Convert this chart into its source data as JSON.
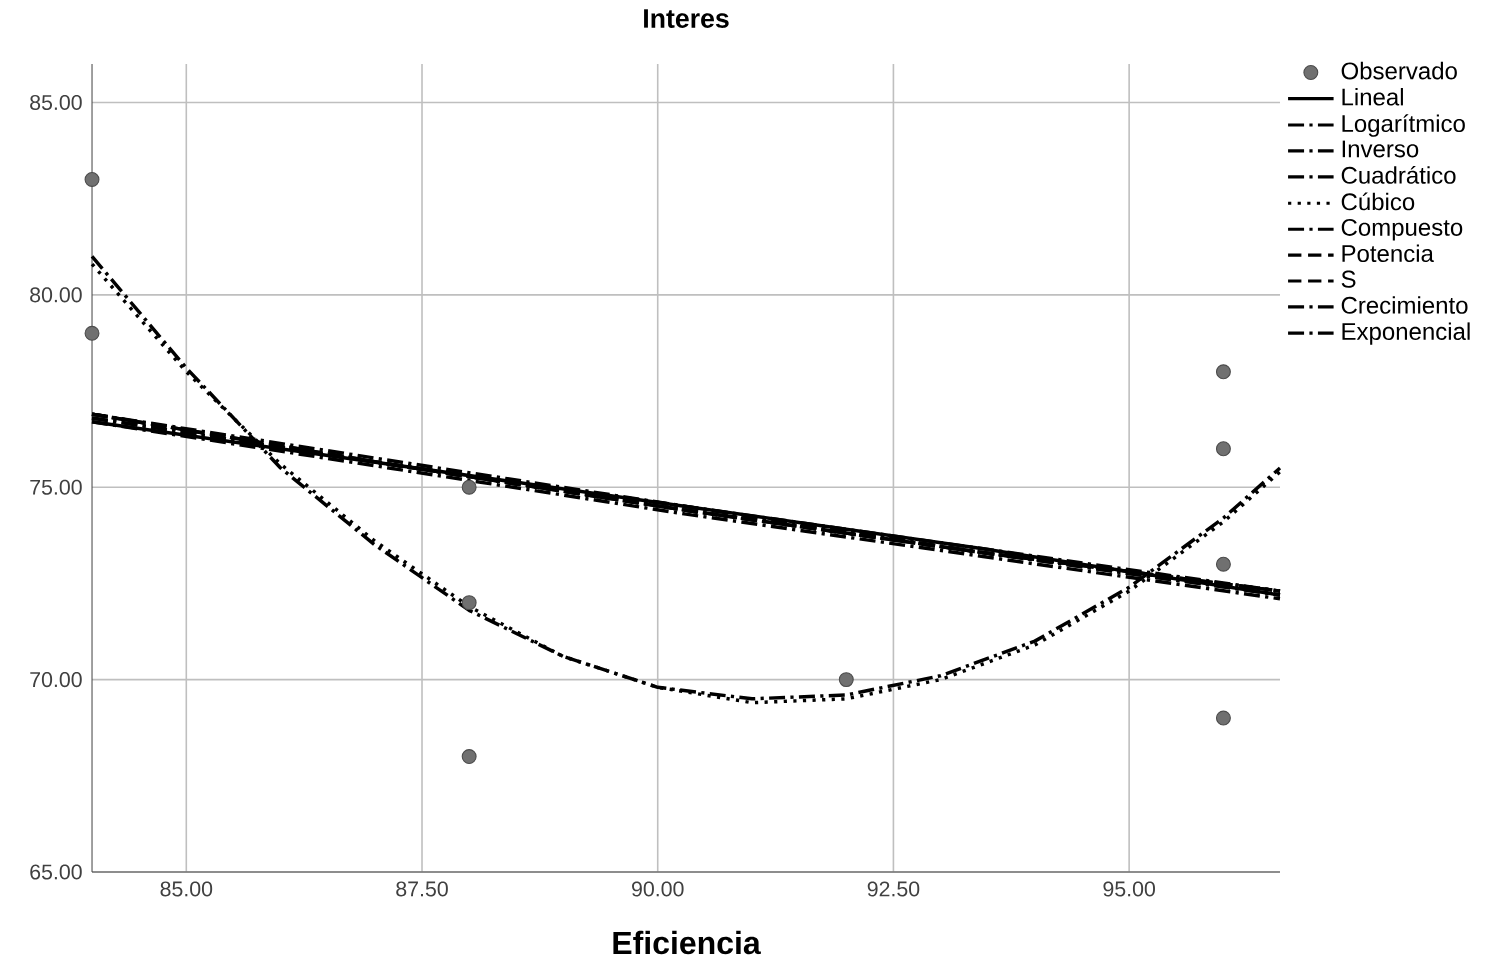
{
  "chart_data": {
    "type": "line",
    "title": "Interes",
    "xlabel": "Eficiencia",
    "xlim": [
      84,
      96.6
    ],
    "ylim": [
      65,
      86
    ],
    "xticks": [
      {
        "value": 85,
        "label": "85.00"
      },
      {
        "value": 87.5,
        "label": "87.50"
      },
      {
        "value": 90,
        "label": "90.00"
      },
      {
        "value": 92.5,
        "label": "92.50"
      },
      {
        "value": 95,
        "label": "95.00"
      }
    ],
    "yticks": [
      {
        "value": 65,
        "label": "65.00"
      },
      {
        "value": 70,
        "label": "70.00"
      },
      {
        "value": 75,
        "label": "75.00"
      },
      {
        "value": 80,
        "label": "80.00"
      },
      {
        "value": 85,
        "label": "85.00"
      }
    ],
    "grid": true,
    "legend": "right",
    "series": [
      {
        "name": "Observado",
        "type": "scatter",
        "marker": "circle",
        "color": "#707070",
        "x": [
          84,
          84,
          88,
          88,
          88,
          92,
          96,
          96,
          96,
          96
        ],
        "values": [
          83,
          79,
          75,
          72,
          68,
          70,
          78,
          76,
          73,
          69
        ]
      },
      {
        "name": "Lineal",
        "color": "#000000",
        "line_style": "solid",
        "x": [
          84,
          87.15,
          90.3,
          93.45,
          96.6
        ],
        "values": [
          76.7,
          75.6,
          74.5,
          73.4,
          72.2
        ]
      },
      {
        "name": "Logarítmico",
        "color": "#000000",
        "line_style": "dashdot",
        "x": [
          84,
          87.15,
          90.3,
          93.45,
          96.6
        ],
        "values": [
          76.8,
          75.6,
          74.5,
          73.3,
          72.2
        ]
      },
      {
        "name": "Inverso",
        "color": "#000000",
        "line_style": "dashdot",
        "x": [
          84,
          87.15,
          90.3,
          93.45,
          96.6
        ],
        "values": [
          76.9,
          75.6,
          74.4,
          73.3,
          72.3
        ]
      },
      {
        "name": "Cuadrático",
        "color": "#000000",
        "line_style": "dashdot",
        "x": [
          84,
          85,
          86,
          87,
          88,
          89,
          90,
          91,
          92,
          93,
          94,
          95,
          96,
          96.6
        ],
        "values": [
          81.0,
          78.1,
          75.5,
          73.5,
          71.8,
          70.6,
          69.8,
          69.5,
          69.6,
          70.1,
          71.0,
          72.4,
          74.2,
          75.5
        ]
      },
      {
        "name": "Cúbico",
        "color": "#000000",
        "line_style": "dotted",
        "x": [
          84,
          85,
          86,
          87,
          88,
          89,
          90,
          91,
          92,
          93,
          94,
          95,
          96,
          96.6
        ],
        "values": [
          80.8,
          78.0,
          75.6,
          73.6,
          71.9,
          70.6,
          69.8,
          69.4,
          69.5,
          70.0,
          70.9,
          72.3,
          74.1,
          75.4
        ]
      },
      {
        "name": "Compuesto",
        "color": "#000000",
        "line_style": "dashdot",
        "x": [
          84,
          87.15,
          90.3,
          93.45,
          96.6
        ],
        "values": [
          76.8,
          75.6,
          74.4,
          73.3,
          72.2
        ]
      },
      {
        "name": "Potencia",
        "color": "#000000",
        "line_style": "dashed",
        "x": [
          84,
          87.15,
          90.3,
          93.45,
          96.6
        ],
        "values": [
          76.9,
          75.6,
          74.4,
          73.3,
          72.3
        ]
      },
      {
        "name": "S",
        "color": "#000000",
        "line_style": "dashed",
        "x": [
          84,
          87.15,
          90.3,
          93.45,
          96.6
        ],
        "values": [
          76.9,
          75.6,
          74.4,
          73.3,
          72.3
        ]
      },
      {
        "name": "Crecimiento",
        "color": "#000000",
        "line_style": "dashdot",
        "x": [
          84,
          87.15,
          90.3,
          93.45,
          96.6
        ],
        "values": [
          76.9,
          75.7,
          74.5,
          73.4,
          72.3
        ]
      },
      {
        "name": "Exponencial",
        "color": "#000000",
        "line_style": "dashdot",
        "x": [
          84,
          87.15,
          90.3,
          93.45,
          96.6
        ],
        "values": [
          76.7,
          75.5,
          74.3,
          73.2,
          72.1
        ]
      }
    ]
  }
}
